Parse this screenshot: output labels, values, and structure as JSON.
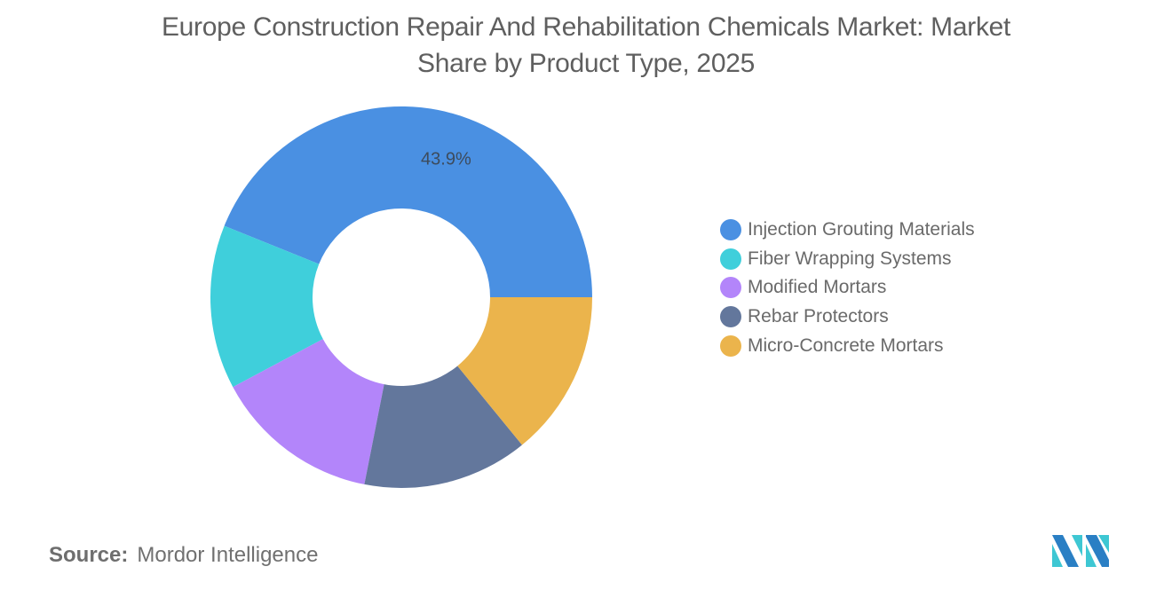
{
  "title": "Europe Construction Repair And Rehabilitation Chemicals Market: Market Share by Product Type, 2025",
  "title_lines": [
    "Europe Construction Repair And Rehabilitation Chemicals Market: Market",
    "Share by Product Type, 2025"
  ],
  "source": {
    "label": "Source:",
    "value": "Mordor Intelligence"
  },
  "logo": {
    "name": "mordor-intelligence-logo",
    "colors": [
      "#2a7fc4",
      "#3ec7d3"
    ]
  },
  "chart_data": {
    "type": "pie",
    "variant": "donut",
    "title": "Europe Construction Repair And Rehabilitation Chemicals Market: Market Share by Product Type, 2025",
    "categories": [
      "Injection Grouting Materials",
      "Fiber Wrapping Systems",
      "Modified Mortars",
      "Rebar Protectors",
      "Micro-Concrete Mortars"
    ],
    "values": [
      43.9,
      13.9,
      14.1,
      14.0,
      14.1
    ],
    "unit": "%",
    "colors": [
      "#4a90e2",
      "#3fcfdb",
      "#b385fa",
      "#63779c",
      "#ebb44c"
    ],
    "data_labels": [
      {
        "category": "Injection Grouting Materials",
        "text": "43.9%"
      }
    ],
    "legend_position": "right",
    "start_angle_deg": 0,
    "direction": "counterclockwise"
  },
  "legend": {
    "items": [
      {
        "label": "Injection Grouting Materials",
        "color": "#4a90e2"
      },
      {
        "label": "Fiber Wrapping Systems",
        "color": "#3fcfdb"
      },
      {
        "label": "Modified Mortars",
        "color": "#b385fa"
      },
      {
        "label": "Rebar Protectors",
        "color": "#63779c"
      },
      {
        "label": "Micro-Concrete Mortars",
        "color": "#ebb44c"
      }
    ]
  }
}
